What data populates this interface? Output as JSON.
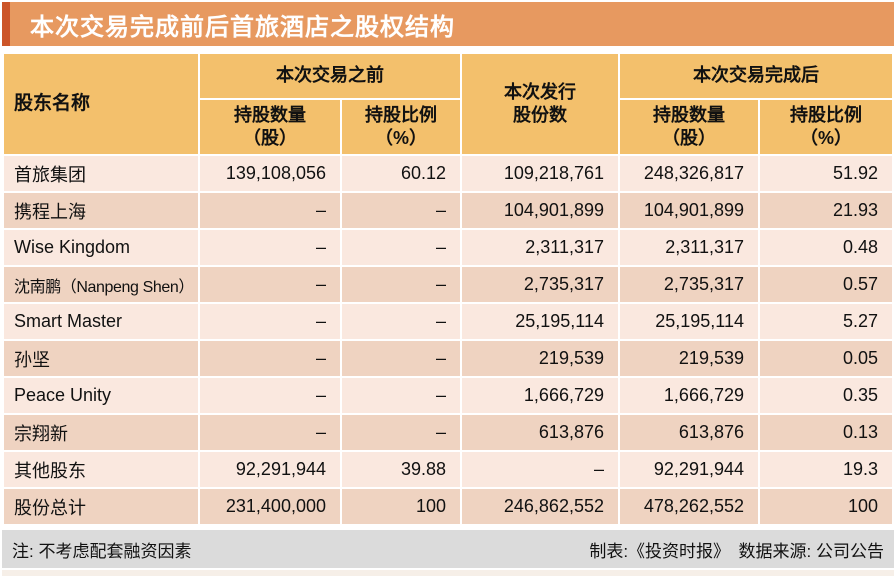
{
  "title": "本次交易完成前后首旅酒店之股权结构",
  "colors": {
    "title_bar": "#E79960",
    "title_accent": "#CC5529",
    "header_bg": "#F3C06C",
    "row_light": "#FAE8DF",
    "row_dark": "#EFD3C1",
    "footer_bg": "#DBDBDB",
    "bottom_strip": "#F6EFE8"
  },
  "chart_data": {
    "type": "table",
    "title": "本次交易完成前后首旅酒店之股权结构",
    "header": {
      "shareholder": "股东名称",
      "before_group": "本次交易之前",
      "issued": "本次发行\n股份数",
      "after_group": "本次交易完成后",
      "qty_label": "持股数量\n（股）",
      "pct_label": "持股比例\n（%）"
    },
    "columns": [
      "股东名称",
      "本次交易之前 持股数量（股）",
      "本次交易之前 持股比例（%）",
      "本次发行股份数",
      "本次交易完成后 持股数量（股）",
      "本次交易完成后 持股比例（%）"
    ],
    "rows": [
      [
        "首旅集团",
        "139,108,056",
        "60.12",
        "109,218,761",
        "248,326,817",
        "51.92"
      ],
      [
        "携程上海",
        "–",
        "–",
        "104,901,899",
        "104,901,899",
        "21.93"
      ],
      [
        "Wise Kingdom",
        "–",
        "–",
        "2,311,317",
        "2,311,317",
        "0.48"
      ],
      [
        "沈南鹏（Nanpeng Shen）",
        "–",
        "–",
        "2,735,317",
        "2,735,317",
        "0.57"
      ],
      [
        "Smart Master",
        "–",
        "–",
        "25,195,114",
        "25,195,114",
        "5.27"
      ],
      [
        "孙坚",
        "–",
        "–",
        "219,539",
        "219,539",
        "0.05"
      ],
      [
        "Peace Unity",
        "–",
        "–",
        "1,666,729",
        "1,666,729",
        "0.35"
      ],
      [
        "宗翔新",
        "–",
        "–",
        "613,876",
        "613,876",
        "0.13"
      ],
      [
        "其他股东",
        "92,291,944",
        "39.88",
        "–",
        "92,291,944",
        "19.3"
      ],
      [
        "股份总计",
        "231,400,000",
        "100",
        "246,862,552",
        "478,262,552",
        "100"
      ]
    ]
  },
  "footer": {
    "note": "注: 不考虑配套融资因素",
    "credit": "制表:《投资时报》　数据来源: 公司公告"
  }
}
